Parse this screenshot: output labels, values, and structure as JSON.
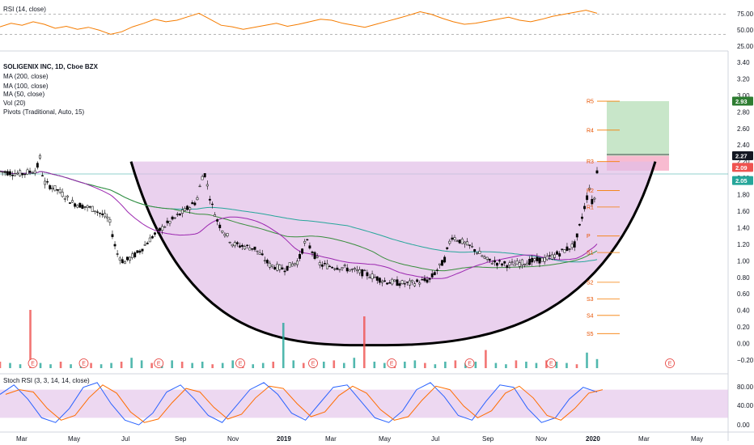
{
  "chart_data": {
    "type": "candlestick",
    "symbol_title": "SOLIGENIX INC, 1D, Cboe BZX",
    "indicator_labels": [
      "MA (200, close)",
      "MA (100, close)",
      "MA (50, close)",
      "Vol (20)",
      "Pivots (Traditional, Auto, 15)"
    ],
    "colors": {
      "up": "#26a69a",
      "down": "#ef5350",
      "candle": "#000000",
      "ma200": "#26a69a",
      "ma100": "#388e3c",
      "ma50": "#9c27b0",
      "cup_fill": "#e1bee7",
      "cup_stroke": "#000000",
      "rsi_line": "#f57c00",
      "stoch_k": "#2962ff",
      "stoch_d": "#ff6d00",
      "stoch_band": "#e1bee7",
      "target_zone": "#c8e6c9",
      "stop_zone": "#f8bbd0"
    },
    "x_labels": [
      "Mar",
      "May",
      "Jul",
      "Sep",
      "Nov",
      "2019",
      "Mar",
      "May",
      "Jul",
      "Sep",
      "Nov",
      "2020",
      "Mar",
      "May"
    ],
    "price_axis": {
      "ticks": [
        "3.40",
        "3.20",
        "3.00",
        "2.80",
        "2.60",
        "2.40",
        "2.20",
        "2.00",
        "1.80",
        "1.60",
        "1.40",
        "1.20",
        "1.00",
        "0.80",
        "0.60",
        "0.40",
        "0.20",
        "0.00",
        "−0.20"
      ],
      "ylim": [
        -0.2,
        3.4
      ]
    },
    "price_tags": [
      {
        "value": "2.93",
        "color": "#2e7d32"
      },
      {
        "value": "2.27",
        "color": "#131722"
      },
      {
        "value": "2.09",
        "color": "#ef5350"
      },
      {
        "value": "2.05",
        "color": "#26a69a"
      }
    ],
    "pivots": [
      {
        "label": "R5",
        "value": 2.93
      },
      {
        "label": "R4",
        "value": 2.58
      },
      {
        "label": "R3",
        "value": 2.2
      },
      {
        "label": "R2",
        "value": 1.85
      },
      {
        "label": "R1",
        "value": 1.65
      },
      {
        "label": "P",
        "value": 1.3
      },
      {
        "label": "S1",
        "value": 1.1
      },
      {
        "label": "S2",
        "value": 0.74
      },
      {
        "label": "S3",
        "value": 0.54
      },
      {
        "label": "S4",
        "value": 0.34
      },
      {
        "label": "S5",
        "value": 0.12
      }
    ],
    "price_path": [
      [
        0,
        2.08
      ],
      [
        0.03,
        2.05
      ],
      [
        0.05,
        2.1
      ],
      [
        0.055,
        2.25
      ],
      [
        0.06,
        1.95
      ],
      [
        0.08,
        1.85
      ],
      [
        0.1,
        1.7
      ],
      [
        0.13,
        1.62
      ],
      [
        0.15,
        1.5
      ],
      [
        0.16,
        1.1
      ],
      [
        0.17,
        0.98
      ],
      [
        0.19,
        1.1
      ],
      [
        0.21,
        1.3
      ],
      [
        0.23,
        1.45
      ],
      [
        0.25,
        1.58
      ],
      [
        0.27,
        1.72
      ],
      [
        0.28,
        2.1
      ],
      [
        0.29,
        1.7
      ],
      [
        0.3,
        1.45
      ],
      [
        0.32,
        1.2
      ],
      [
        0.35,
        1.15
      ],
      [
        0.37,
        0.95
      ],
      [
        0.39,
        0.9
      ],
      [
        0.41,
        1.0
      ],
      [
        0.42,
        1.25
      ],
      [
        0.44,
        0.95
      ],
      [
        0.47,
        0.92
      ],
      [
        0.5,
        0.85
      ],
      [
        0.53,
        0.75
      ],
      [
        0.56,
        0.72
      ],
      [
        0.59,
        0.77
      ],
      [
        0.61,
        1.0
      ],
      [
        0.62,
        1.3
      ],
      [
        0.63,
        1.25
      ],
      [
        0.65,
        1.15
      ],
      [
        0.67,
        1.0
      ],
      [
        0.7,
        0.95
      ],
      [
        0.72,
        0.98
      ],
      [
        0.75,
        1.02
      ],
      [
        0.77,
        1.1
      ],
      [
        0.79,
        1.2
      ],
      [
        0.8,
        1.55
      ],
      [
        0.81,
        1.9
      ],
      [
        0.815,
        1.6
      ],
      [
        0.82,
        2.09
      ]
    ],
    "cup_curve": {
      "left": [
        0.18,
        2.2
      ],
      "bottom": [
        0.53,
        -0.02
      ],
      "right": [
        0.9,
        2.2
      ]
    },
    "rsi": {
      "title": "RSI (14, close)",
      "ticks": [
        "75.00",
        "50.00",
        "25.00"
      ],
      "levels": [
        70,
        30
      ],
      "values": [
        45,
        52,
        48,
        55,
        50,
        42,
        46,
        40,
        44,
        38,
        30,
        35,
        45,
        52,
        60,
        55,
        58,
        65,
        72,
        60,
        48,
        45,
        40,
        44,
        48,
        52,
        46,
        50,
        55,
        60,
        58,
        52,
        48,
        44,
        50,
        56,
        62,
        68,
        75,
        70,
        62,
        55,
        50,
        52,
        56,
        60,
        64,
        58,
        55,
        60,
        66,
        70,
        74,
        78,
        72
      ]
    },
    "stoch_rsi": {
      "title": "Stoch RSI (3, 3, 14, 14, close)",
      "ticks": [
        "80.00",
        "40.00",
        "0.00"
      ],
      "band": [
        20,
        80
      ],
      "k": [
        70,
        90,
        60,
        20,
        10,
        40,
        85,
        95,
        50,
        15,
        5,
        30,
        75,
        90,
        60,
        25,
        10,
        45,
        80,
        95,
        70,
        30,
        15,
        50,
        85,
        90,
        55,
        20,
        10,
        35,
        80,
        95,
        65,
        25,
        15,
        55,
        90,
        85,
        40,
        10,
        20,
        60,
        85,
        75
      ]
    },
    "volume": [
      5,
      4,
      3,
      45,
      4,
      3,
      5,
      3,
      6,
      4,
      3,
      4,
      5,
      8,
      6,
      4,
      3,
      6,
      5,
      4,
      5,
      3,
      4,
      6,
      5,
      3,
      4,
      5,
      35,
      6,
      4,
      3,
      5,
      6,
      4,
      8,
      40,
      5,
      4,
      3,
      5,
      6,
      4,
      3,
      5,
      6,
      4,
      5,
      14,
      4,
      3,
      6,
      5,
      4,
      6,
      5,
      4,
      3,
      12,
      7
    ]
  }
}
